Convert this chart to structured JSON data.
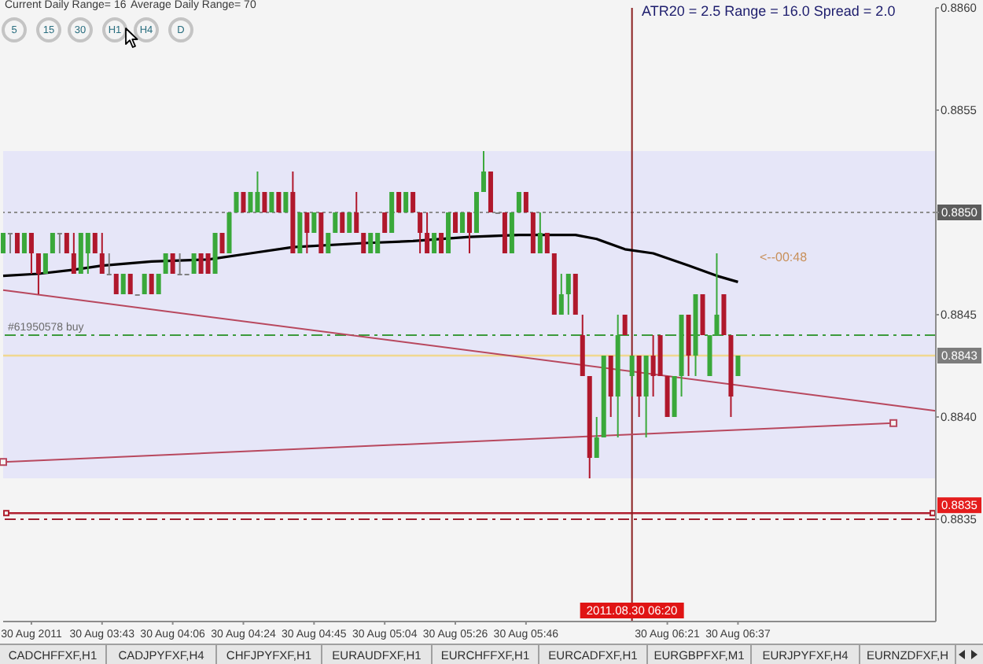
{
  "chart_data": {
    "type": "candlestick",
    "categories": [
      null,
      null,
      null,
      null,
      "30 Aug 2011",
      null,
      null,
      null,
      null,
      null,
      null,
      null,
      null,
      null,
      "30 Aug 03:43",
      null,
      null,
      null,
      null,
      null,
      null,
      null,
      null,
      null,
      "30 Aug 04:06",
      null,
      null,
      null,
      null,
      null,
      null,
      null,
      null,
      null,
      "30 Aug 04:24",
      null,
      null,
      null,
      null,
      null,
      null,
      null,
      null,
      null,
      "30 Aug 04:45",
      null,
      null,
      null,
      null,
      null,
      null,
      null,
      null,
      null,
      "30 Aug 05:04",
      null,
      null,
      null,
      null,
      null,
      null,
      null,
      null,
      null,
      "30 Aug 05:26",
      null,
      null,
      null,
      null,
      null,
      null,
      null,
      null,
      null,
      "30 Aug 05:46",
      null,
      null,
      null,
      null,
      null,
      null,
      null,
      null,
      null,
      null,
      null,
      null,
      null,
      null,
      "2011.08.30 06:20",
      null,
      null,
      null,
      null,
      "30 Aug 06:21",
      null,
      null,
      null,
      null,
      null,
      null,
      null,
      null,
      null,
      "30 Aug 06:37",
      null,
      null,
      null,
      null,
      null,
      null,
      null,
      null,
      null,
      null,
      null,
      null,
      null,
      null,
      null,
      null,
      null,
      null,
      null,
      null,
      null,
      null,
      null,
      null,
      null,
      null,
      null,
      null
    ],
    "ohlc": [
      [
        0.8848,
        0.8849,
        0.8848,
        0.8849
      ],
      [
        0.8849,
        0.8849,
        0.8848,
        0.8849
      ],
      [
        0.8849,
        0.8849,
        0.8848,
        0.8848
      ],
      [
        0.8848,
        0.8849,
        0.8848,
        0.8849
      ],
      [
        0.8849,
        0.8849,
        0.8847,
        0.8848
      ],
      [
        0.8848,
        0.8848,
        0.8846,
        0.8847
      ],
      [
        0.8847,
        0.8848,
        0.8847,
        0.8848
      ],
      [
        0.8848,
        0.8849,
        0.8848,
        0.8849
      ],
      [
        0.8849,
        0.8849,
        0.8848,
        0.8849
      ],
      [
        0.8849,
        0.8849,
        0.8848,
        0.8848
      ],
      [
        0.8848,
        0.8849,
        0.8847,
        0.8847
      ],
      [
        0.8847,
        0.8849,
        0.8847,
        0.8849
      ],
      [
        0.8848,
        0.8849,
        0.8847,
        0.8849
      ],
      [
        0.8849,
        0.8849,
        0.8848,
        0.8848
      ],
      [
        0.8848,
        0.8849,
        0.8847,
        0.8847
      ],
      [
        0.8847,
        0.8848,
        0.8847,
        0.8847
      ],
      [
        0.8847,
        0.8847,
        0.8846,
        0.8846
      ],
      [
        0.8846,
        0.8847,
        0.8846,
        0.8847
      ],
      [
        0.8847,
        0.8847,
        0.8846,
        0.8846
      ],
      [
        0.8846,
        0.8846,
        0.8846,
        0.8846
      ],
      [
        0.8846,
        0.8847,
        0.8846,
        0.8847
      ],
      [
        0.8847,
        0.8847,
        0.8846,
        0.8846
      ],
      [
        0.8846,
        0.8847,
        0.8846,
        0.8847
      ],
      [
        0.8847,
        0.8848,
        0.8847,
        0.8848
      ],
      [
        0.8848,
        0.8848,
        0.8847,
        0.8847
      ],
      [
        0.8847,
        0.8848,
        0.8847,
        0.8847
      ],
      [
        0.8847,
        0.8847,
        0.8847,
        0.8847
      ],
      [
        0.8847,
        0.8848,
        0.8847,
        0.8848
      ],
      [
        0.8848,
        0.8848,
        0.8847,
        0.8847
      ],
      [
        0.8848,
        0.8848,
        0.8847,
        0.8847
      ],
      [
        0.8847,
        0.8849,
        0.8847,
        0.8849
      ],
      [
        0.8849,
        0.8849,
        0.8848,
        0.8848
      ],
      [
        0.8848,
        0.885,
        0.8848,
        0.885
      ],
      [
        0.885,
        0.8851,
        0.885,
        0.8851
      ],
      [
        0.8851,
        0.8851,
        0.885,
        0.885
      ],
      [
        0.885,
        0.8851,
        0.885,
        0.8851
      ],
      [
        0.885,
        0.8852,
        0.885,
        0.8851
      ],
      [
        0.8851,
        0.8851,
        0.885,
        0.885
      ],
      [
        0.885,
        0.8851,
        0.885,
        0.8851
      ],
      [
        0.8851,
        0.8851,
        0.885,
        0.885
      ],
      [
        0.885,
        0.8851,
        0.885,
        0.8851
      ],
      [
        0.8851,
        0.8852,
        0.8848,
        0.8848
      ],
      [
        0.8848,
        0.885,
        0.8848,
        0.885
      ],
      [
        0.885,
        0.885,
        0.8848,
        0.8849
      ],
      [
        0.8849,
        0.885,
        0.8849,
        0.885
      ],
      [
        0.885,
        0.885,
        0.8848,
        0.8848
      ],
      [
        0.8848,
        0.8849,
        0.8848,
        0.8849
      ],
      [
        0.8849,
        0.885,
        0.8849,
        0.885
      ],
      [
        0.885,
        0.885,
        0.8849,
        0.8849
      ],
      [
        0.8849,
        0.885,
        0.8849,
        0.885
      ],
      [
        0.885,
        0.8851,
        0.8849,
        0.8849
      ],
      [
        0.8849,
        0.8849,
        0.8848,
        0.8848
      ],
      [
        0.8848,
        0.8849,
        0.8848,
        0.8849
      ],
      [
        0.8848,
        0.8849,
        0.8848,
        0.8849
      ],
      [
        0.885,
        0.885,
        0.8849,
        0.8849
      ],
      [
        0.8849,
        0.8851,
        0.8849,
        0.8851
      ],
      [
        0.8851,
        0.8851,
        0.885,
        0.885
      ],
      [
        0.885,
        0.8851,
        0.885,
        0.8851
      ],
      [
        0.8851,
        0.8851,
        0.885,
        0.885
      ],
      [
        0.885,
        0.885,
        0.8848,
        0.8849
      ],
      [
        0.8849,
        0.885,
        0.8848,
        0.8848
      ],
      [
        0.8848,
        0.8849,
        0.8848,
        0.8849
      ],
      [
        0.8849,
        0.8849,
        0.8848,
        0.8848
      ],
      [
        0.8848,
        0.885,
        0.8848,
        0.885
      ],
      [
        0.885,
        0.885,
        0.8849,
        0.8849
      ],
      [
        0.8849,
        0.885,
        0.8849,
        0.885
      ],
      [
        0.885,
        0.885,
        0.8848,
        0.8849
      ],
      [
        0.8849,
        0.8851,
        0.8849,
        0.8851
      ],
      [
        0.8851,
        0.8853,
        0.8851,
        0.8852
      ],
      [
        0.8852,
        0.8852,
        0.885,
        0.885
      ],
      [
        0.885,
        0.885,
        0.885,
        0.885
      ],
      [
        0.885,
        0.885,
        0.8848,
        0.8848
      ],
      [
        0.8848,
        0.885,
        0.8848,
        0.885
      ],
      [
        0.885,
        0.8851,
        0.885,
        0.8851
      ],
      [
        0.8851,
        0.8851,
        0.885,
        0.885
      ],
      [
        0.885,
        0.885,
        0.8848,
        0.8848
      ],
      [
        0.8848,
        0.885,
        0.8848,
        0.8849
      ],
      [
        0.8849,
        0.8849,
        0.8848,
        0.8848
      ],
      [
        0.8848,
        0.8848,
        0.8845,
        0.8845
      ],
      [
        0.8845,
        0.8847,
        0.8845,
        0.8846
      ],
      [
        0.8846,
        0.8847,
        0.8845,
        0.8847
      ],
      [
        0.8847,
        0.8847,
        0.8845,
        0.8845
      ],
      [
        0.8844,
        0.8845,
        0.8842,
        0.8842
      ],
      [
        0.8842,
        0.8842,
        0.8837,
        0.8838
      ],
      [
        0.8838,
        0.884,
        0.8838,
        0.8839
      ],
      [
        0.8839,
        0.8843,
        0.8839,
        0.8843
      ],
      [
        0.8843,
        0.8843,
        0.884,
        0.8841
      ],
      [
        0.8841,
        0.8845,
        0.8839,
        0.8844
      ],
      [
        0.8845,
        0.8845,
        0.8844,
        0.8844
      ],
      [
        0.8842,
        0.8843,
        0.8841,
        0.8843
      ],
      [
        0.8843,
        0.8843,
        0.884,
        0.8841
      ],
      [
        0.8841,
        0.8843,
        0.8839,
        0.8843
      ],
      [
        0.8843,
        0.8844,
        0.8841,
        0.8842
      ],
      [
        0.8844,
        0.8844,
        0.8842,
        0.8842
      ],
      [
        0.8842,
        0.8842,
        0.884,
        0.884
      ],
      [
        0.884,
        0.8842,
        0.884,
        0.8842
      ],
      [
        0.8842,
        0.8845,
        0.8841,
        0.8845
      ],
      [
        0.8845,
        0.8845,
        0.8842,
        0.8843
      ],
      [
        0.8843,
        0.8846,
        0.8842,
        0.8846
      ],
      [
        0.8846,
        0.8846,
        0.8844,
        0.8844
      ],
      [
        0.8842,
        0.8844,
        0.8842,
        0.8844
      ],
      [
        0.8844,
        0.8848,
        0.8844,
        0.8845
      ],
      [
        0.8846,
        0.8846,
        0.8844,
        0.8844
      ],
      [
        0.8844,
        0.8844,
        0.884,
        0.8841
      ],
      [
        0.8842,
        0.8843,
        0.8842,
        0.8843
      ],
      null,
      null,
      null,
      null,
      null,
      null,
      null,
      null,
      null,
      null,
      null,
      null,
      null,
      null,
      null,
      null,
      null,
      null,
      null,
      null,
      null,
      null,
      null,
      null,
      null,
      null,
      null,
      null
    ],
    "colors": [
      "#3aa83a",
      "#808080",
      "#b0182c",
      "#3aa83a",
      "#b0182c",
      "#b0182c",
      "#3aa83a",
      "#3aa83a",
      "#808080",
      "#b0182c",
      "#b0182c",
      "#3aa83a",
      "#3aa83a",
      "#b0182c",
      "#b0182c",
      "#808080",
      "#b0182c",
      "#3aa83a",
      "#b0182c",
      "#808080",
      "#3aa83a",
      "#b0182c",
      "#3aa83a",
      "#3aa83a",
      "#b0182c",
      "#808080",
      "#808080",
      "#3aa83a",
      "#b0182c",
      "#b0182c",
      "#3aa83a",
      "#b0182c",
      "#3aa83a",
      "#3aa83a",
      "#b0182c",
      "#3aa83a",
      "#3aa83a",
      "#b0182c",
      "#3aa83a",
      "#b0182c",
      "#3aa83a",
      "#b0182c",
      "#3aa83a",
      "#b0182c",
      "#3aa83a",
      "#b0182c",
      "#3aa83a",
      "#3aa83a",
      "#b0182c",
      "#3aa83a",
      "#b0182c",
      "#b0182c",
      "#3aa83a",
      "#3aa83a",
      "#b0182c",
      "#3aa83a",
      "#b0182c",
      "#3aa83a",
      "#b0182c",
      "#b0182c",
      "#b0182c",
      "#3aa83a",
      "#b0182c",
      "#3aa83a",
      "#b0182c",
      "#3aa83a",
      "#b0182c",
      "#3aa83a",
      "#3aa83a",
      "#b0182c",
      "#808080",
      "#b0182c",
      "#3aa83a",
      "#3aa83a",
      "#b0182c",
      "#b0182c",
      "#3aa83a",
      "#b0182c",
      "#b0182c",
      "#3aa83a",
      "#3aa83a",
      "#b0182c",
      "#b0182c",
      "#b0182c",
      "#3aa83a",
      "#3aa83a",
      "#b0182c",
      "#3aa83a",
      "#b0182c",
      "#3aa83a",
      "#b0182c",
      "#3aa83a",
      "#b0182c",
      "#b0182c",
      "#b0182c",
      "#3aa83a",
      "#3aa83a",
      "#b0182c",
      "#3aa83a",
      "#b0182c",
      "#3aa83a",
      "#3aa83a",
      "#b0182c",
      "#b0182c",
      "#3aa83a",
      null,
      null,
      null,
      null,
      null,
      null,
      null,
      null,
      null,
      null,
      null,
      null,
      null,
      null,
      null,
      null,
      null,
      null,
      null,
      null,
      null,
      null,
      null,
      null,
      null,
      null,
      null,
      null
    ],
    "series": [
      {
        "type": "line",
        "color": "#000000",
        "values": [
          0.88469,
          null,
          null,
          null,
          null,
          0.8847,
          null,
          null,
          null,
          null,
          0.88472,
          null,
          null,
          null,
          0.88474,
          null,
          null,
          null,
          null,
          null,
          null,
          0.88476,
          null,
          null,
          null,
          null,
          null,
          null,
          null,
          0.88477,
          null,
          null,
          null,
          null,
          null,
          0.8848,
          null,
          null,
          null,
          null,
          null,
          0.88483,
          null,
          null,
          null,
          null,
          null,
          null,
          null,
          null,
          null,
          0.88485,
          null,
          null,
          null,
          null,
          null,
          null,
          0.88486,
          null,
          null,
          null,
          null,
          null,
          null,
          null,
          0.88488,
          null,
          null,
          null,
          null,
          null,
          null,
          0.88489,
          null,
          null,
          null,
          null,
          null,
          null,
          null,
          0.88489,
          null,
          null,
          0.88487,
          null,
          null,
          null,
          0.88482,
          null,
          null,
          null,
          0.8848,
          null,
          null,
          null,
          null,
          0.88474,
          null,
          null,
          null,
          0.88469,
          null,
          null,
          0.88466,
          null,
          null,
          null,
          null,
          null,
          null,
          null,
          null,
          null,
          null,
          null,
          null,
          null,
          null,
          null,
          null,
          null,
          null,
          null,
          null,
          null,
          null,
          null,
          null,
          null,
          null,
          null,
          null
        ]
      },
      {
        "type": "line",
        "color": "#b8485e",
        "values": [
          0.88462,
          null,
          null,
          null,
          null,
          null,
          null,
          null,
          null,
          null,
          null,
          null,
          null,
          null,
          null,
          null,
          null,
          null,
          null,
          null,
          null,
          null,
          null,
          null,
          null,
          null,
          null,
          null,
          null,
          null,
          null,
          null,
          null,
          null,
          null,
          null,
          null,
          null,
          null,
          null,
          null,
          null,
          null,
          null,
          null,
          null,
          null,
          null,
          null,
          null,
          null,
          null,
          null,
          null,
          null,
          null,
          null,
          null,
          null,
          null,
          null,
          null,
          null,
          null,
          null,
          null,
          null,
          null,
          null,
          null,
          null,
          null,
          null,
          null,
          null,
          null,
          null,
          null,
          null,
          null,
          null,
          null,
          null,
          null,
          null,
          null,
          null,
          null,
          null,
          null,
          null,
          null,
          null,
          null,
          null,
          null,
          null,
          null,
          null,
          null,
          null,
          null,
          null,
          null,
          null,
          null,
          null,
          null,
          null,
          null,
          null,
          null,
          null,
          null,
          null,
          null,
          null,
          null,
          null,
          null,
          null,
          null,
          null,
          null,
          null,
          null,
          null,
          null,
          null,
          null,
          null,
          null,
          0.88403
        ]
      },
      {
        "type": "line",
        "color": "#b8485e",
        "marker": "square",
        "values": [
          0.88378,
          null,
          null,
          null,
          null,
          null,
          null,
          null,
          null,
          null,
          null,
          null,
          null,
          null,
          null,
          null,
          null,
          null,
          null,
          null,
          null,
          null,
          null,
          null,
          null,
          null,
          null,
          null,
          null,
          null,
          null,
          null,
          null,
          null,
          null,
          null,
          null,
          null,
          null,
          null,
          null,
          null,
          null,
          null,
          null,
          null,
          null,
          null,
          null,
          null,
          null,
          null,
          null,
          null,
          null,
          null,
          null,
          null,
          null,
          null,
          null,
          null,
          null,
          null,
          null,
          null,
          null,
          null,
          null,
          null,
          null,
          null,
          null,
          null,
          null,
          null,
          null,
          null,
          null,
          null,
          null,
          null,
          null,
          null,
          null,
          null,
          null,
          null,
          null,
          null,
          null,
          null,
          null,
          null,
          null,
          null,
          null,
          null,
          null,
          null,
          null,
          null,
          null,
          null,
          null,
          null,
          null,
          null,
          null,
          null,
          null,
          null,
          null,
          null,
          null,
          null,
          null,
          null,
          null,
          null,
          null,
          null,
          null,
          null,
          null,
          null,
          0.88397,
          null,
          null,
          null,
          null,
          null,
          null
        ]
      }
    ],
    "ylim": [
      0.883,
      0.886
    ],
    "yticks": [
      {
        "value": 0.886,
        "label": "0.8860"
      },
      0.8855,
      {
        "value": 0.885,
        "label": null
      },
      0.8845,
      {
        "value": 0.884,
        "label": "0.8840"
      },
      0.8835
    ],
    "bands": [
      {
        "axis": "y",
        "from": 0.8837,
        "to": 0.8853,
        "color": "#e6e6f8"
      }
    ],
    "ref_lines": [
      {
        "axis": "y",
        "value": 0.885,
        "label": "0.8850",
        "color": "#8c8c8c",
        "line_style": "dotted"
      },
      {
        "axis": "y",
        "value": 0.8844,
        "label": "#61950578 buy",
        "color": "#3c9a3c",
        "line_style": "dashed"
      },
      {
        "axis": "y",
        "value": 0.8843,
        "label": "0.8843",
        "color": "#f0d890"
      },
      {
        "axis": "y",
        "value": 0.88353,
        "label": "0.8835",
        "color": "#b02030"
      },
      {
        "axis": "y",
        "value": 0.8835,
        "color": "#a02030",
        "line_style": "dashed"
      },
      {
        "axis": "x",
        "value": "2011.08.30 06:20",
        "color": "#8b2020"
      }
    ],
    "annotations": [
      "Current Daily Range= 16",
      "Average Daily Range= 70",
      "5",
      "15",
      "30",
      "H1",
      "H4",
      "D",
      "ATR20 = 2.5 Range = 16.0 Spread = 2.0",
      "<--00:48",
      "CADCHFFXF,H1",
      "CADJPYFXF,H4",
      "CHFJPYFXF,H1",
      "EURAUDFXF,H1",
      "EURCHFFXF,H1",
      "EURCADFXF,H1",
      "EURGBPFXF,M1",
      "EURJPYFXF,H4",
      "EURNZDFXF,H"
    ]
  }
}
